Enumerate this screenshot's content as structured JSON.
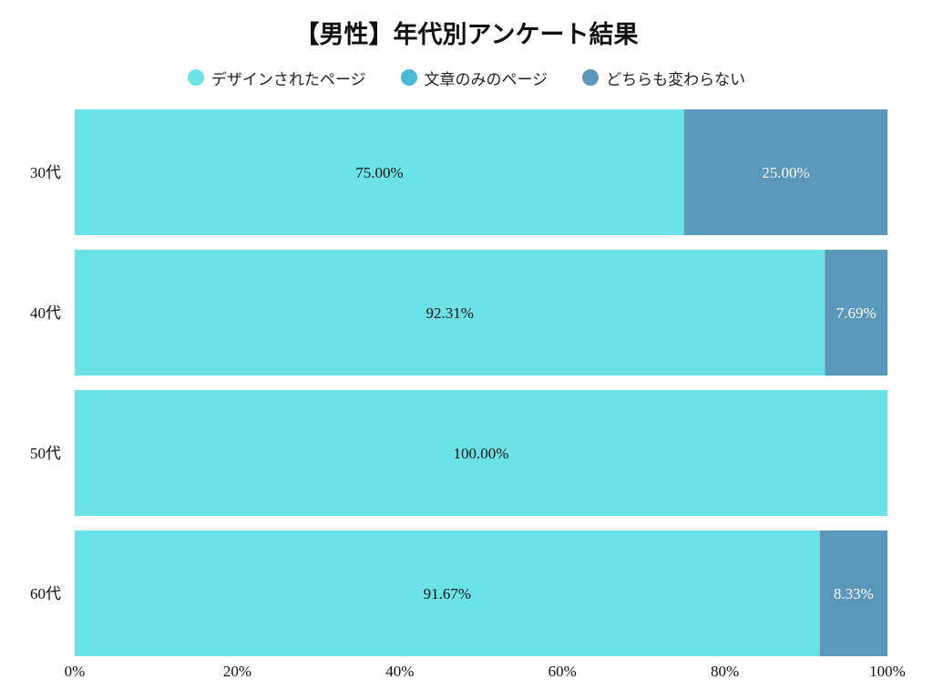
{
  "chart_data": {
    "type": "bar",
    "orientation": "horizontal",
    "stacked": true,
    "title": "【男性】年代別アンケート結果",
    "categories": [
      "30代",
      "40代",
      "50代",
      "60代"
    ],
    "series": [
      {
        "name": "デザインされたページ",
        "color": "#6be3e6",
        "values": [
          75.0,
          92.31,
          100.0,
          91.67
        ],
        "labels": [
          "75.00%",
          "92.31%",
          "100.00%",
          "91.67%"
        ],
        "label_color": "#111111"
      },
      {
        "name": "文章のみのページ",
        "color": "#4ab8d8",
        "values": [
          0,
          0,
          0,
          0
        ],
        "labels": [
          "",
          "",
          "",
          ""
        ],
        "label_color": "#ffffff"
      },
      {
        "name": "どちらも変わらない",
        "color": "#5b96bb",
        "values": [
          25.0,
          7.69,
          0,
          8.33
        ],
        "labels": [
          "25.00%",
          "7.69%",
          "",
          "8.33%"
        ],
        "label_color": "#ffffff"
      }
    ],
    "xlim": [
      0,
      100
    ],
    "xticks": [
      "0%",
      "20%",
      "40%",
      "60%",
      "80%",
      "100%"
    ],
    "legend_position": "top",
    "grid": false
  }
}
